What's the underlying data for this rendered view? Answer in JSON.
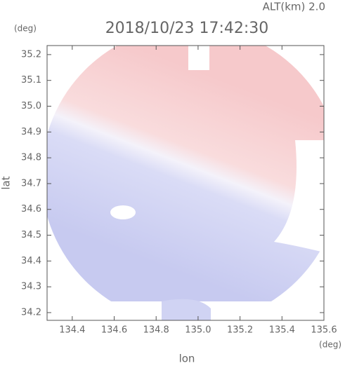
{
  "chart_data": {
    "type": "map",
    "top_label": "ALT(km)  2.0",
    "title": "2018/10/23 17:42:30",
    "y_unit": "(deg)",
    "x_unit": "(deg)",
    "xlabel": "lon",
    "ylabel": "lat",
    "xlim": [
      134.28,
      135.6
    ],
    "ylim": [
      34.17,
      35.235
    ],
    "xticks": [
      134.4,
      134.6,
      134.8,
      {
        "value": 135,
        "label": "135.0"
      },
      135.2,
      135.4,
      135.6
    ],
    "yticks": [
      34.2,
      34.3,
      34.4,
      34.5,
      34.6,
      34.7,
      34.8,
      34.9,
      {
        "value": 35,
        "label": "35.0"
      },
      35.1,
      35.2
    ]
  }
}
